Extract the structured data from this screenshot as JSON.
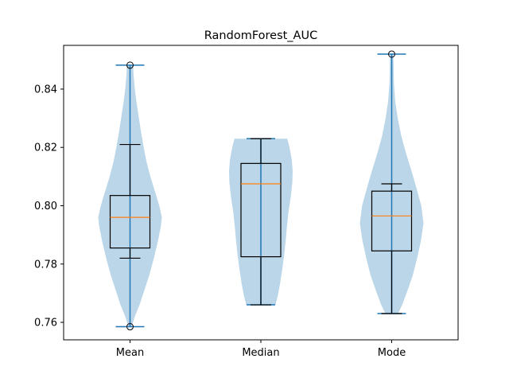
{
  "chart_data": {
    "type": "violin+box",
    "title": "RandomForest_AUC",
    "xlabel": "",
    "ylabel": "",
    "categories": [
      "Mean",
      "Median",
      "Mode"
    ],
    "ylim": [
      0.754,
      0.855
    ],
    "yticks": [
      0.76,
      0.78,
      0.8,
      0.82,
      0.84
    ],
    "ytick_labels": [
      "0.76",
      "0.78",
      "0.80",
      "0.82",
      "0.84"
    ],
    "grid": false,
    "colors": {
      "violin_fill": "#1f77b4",
      "violin_line": "#1f77b4",
      "box_line": "#000000",
      "median_line": "#ff7f0e"
    },
    "series": [
      {
        "category": "Mean",
        "min": 0.7585,
        "max": 0.8482,
        "q1": 0.7855,
        "median": 0.796,
        "q3": 0.8035,
        "whisker_low": 0.782,
        "whisker_high": 0.821,
        "outliers": [
          0.7585,
          0.8482
        ],
        "density": [
          [
            0.7585,
            0.05
          ],
          [
            0.762,
            0.15
          ],
          [
            0.766,
            0.3
          ],
          [
            0.771,
            0.45
          ],
          [
            0.776,
            0.6
          ],
          [
            0.782,
            0.75
          ],
          [
            0.788,
            0.88
          ],
          [
            0.793,
            0.97
          ],
          [
            0.796,
            1.0
          ],
          [
            0.8,
            0.92
          ],
          [
            0.805,
            0.78
          ],
          [
            0.81,
            0.64
          ],
          [
            0.815,
            0.52
          ],
          [
            0.82,
            0.43
          ],
          [
            0.825,
            0.35
          ],
          [
            0.83,
            0.28
          ],
          [
            0.835,
            0.21
          ],
          [
            0.84,
            0.15
          ],
          [
            0.845,
            0.11
          ],
          [
            0.8482,
            0.1
          ]
        ]
      },
      {
        "category": "Median",
        "min": 0.766,
        "max": 0.823,
        "q1": 0.7825,
        "median": 0.8075,
        "q3": 0.8145,
        "whisker_low": 0.766,
        "whisker_high": 0.823,
        "outliers": [],
        "density": [
          [
            0.766,
            0.46
          ],
          [
            0.769,
            0.53
          ],
          [
            0.773,
            0.6
          ],
          [
            0.778,
            0.67
          ],
          [
            0.783,
            0.73
          ],
          [
            0.788,
            0.78
          ],
          [
            0.793,
            0.82
          ],
          [
            0.798,
            0.87
          ],
          [
            0.803,
            0.94
          ],
          [
            0.808,
            0.99
          ],
          [
            0.812,
            1.0
          ],
          [
            0.816,
            0.97
          ],
          [
            0.82,
            0.9
          ],
          [
            0.823,
            0.83
          ]
        ]
      },
      {
        "category": "Mode",
        "min": 0.763,
        "max": 0.852,
        "q1": 0.7845,
        "median": 0.7965,
        "q3": 0.805,
        "whisker_low": 0.763,
        "whisker_high": 0.8075,
        "outliers": [
          0.852
        ],
        "density": [
          [
            0.763,
            0.2
          ],
          [
            0.766,
            0.33
          ],
          [
            0.771,
            0.5
          ],
          [
            0.776,
            0.66
          ],
          [
            0.782,
            0.8
          ],
          [
            0.788,
            0.92
          ],
          [
            0.794,
            1.0
          ],
          [
            0.8,
            0.93
          ],
          [
            0.806,
            0.78
          ],
          [
            0.812,
            0.62
          ],
          [
            0.818,
            0.45
          ],
          [
            0.824,
            0.3
          ],
          [
            0.83,
            0.19
          ],
          [
            0.836,
            0.11
          ],
          [
            0.842,
            0.07
          ],
          [
            0.848,
            0.06
          ],
          [
            0.852,
            0.05
          ]
        ]
      }
    ]
  }
}
